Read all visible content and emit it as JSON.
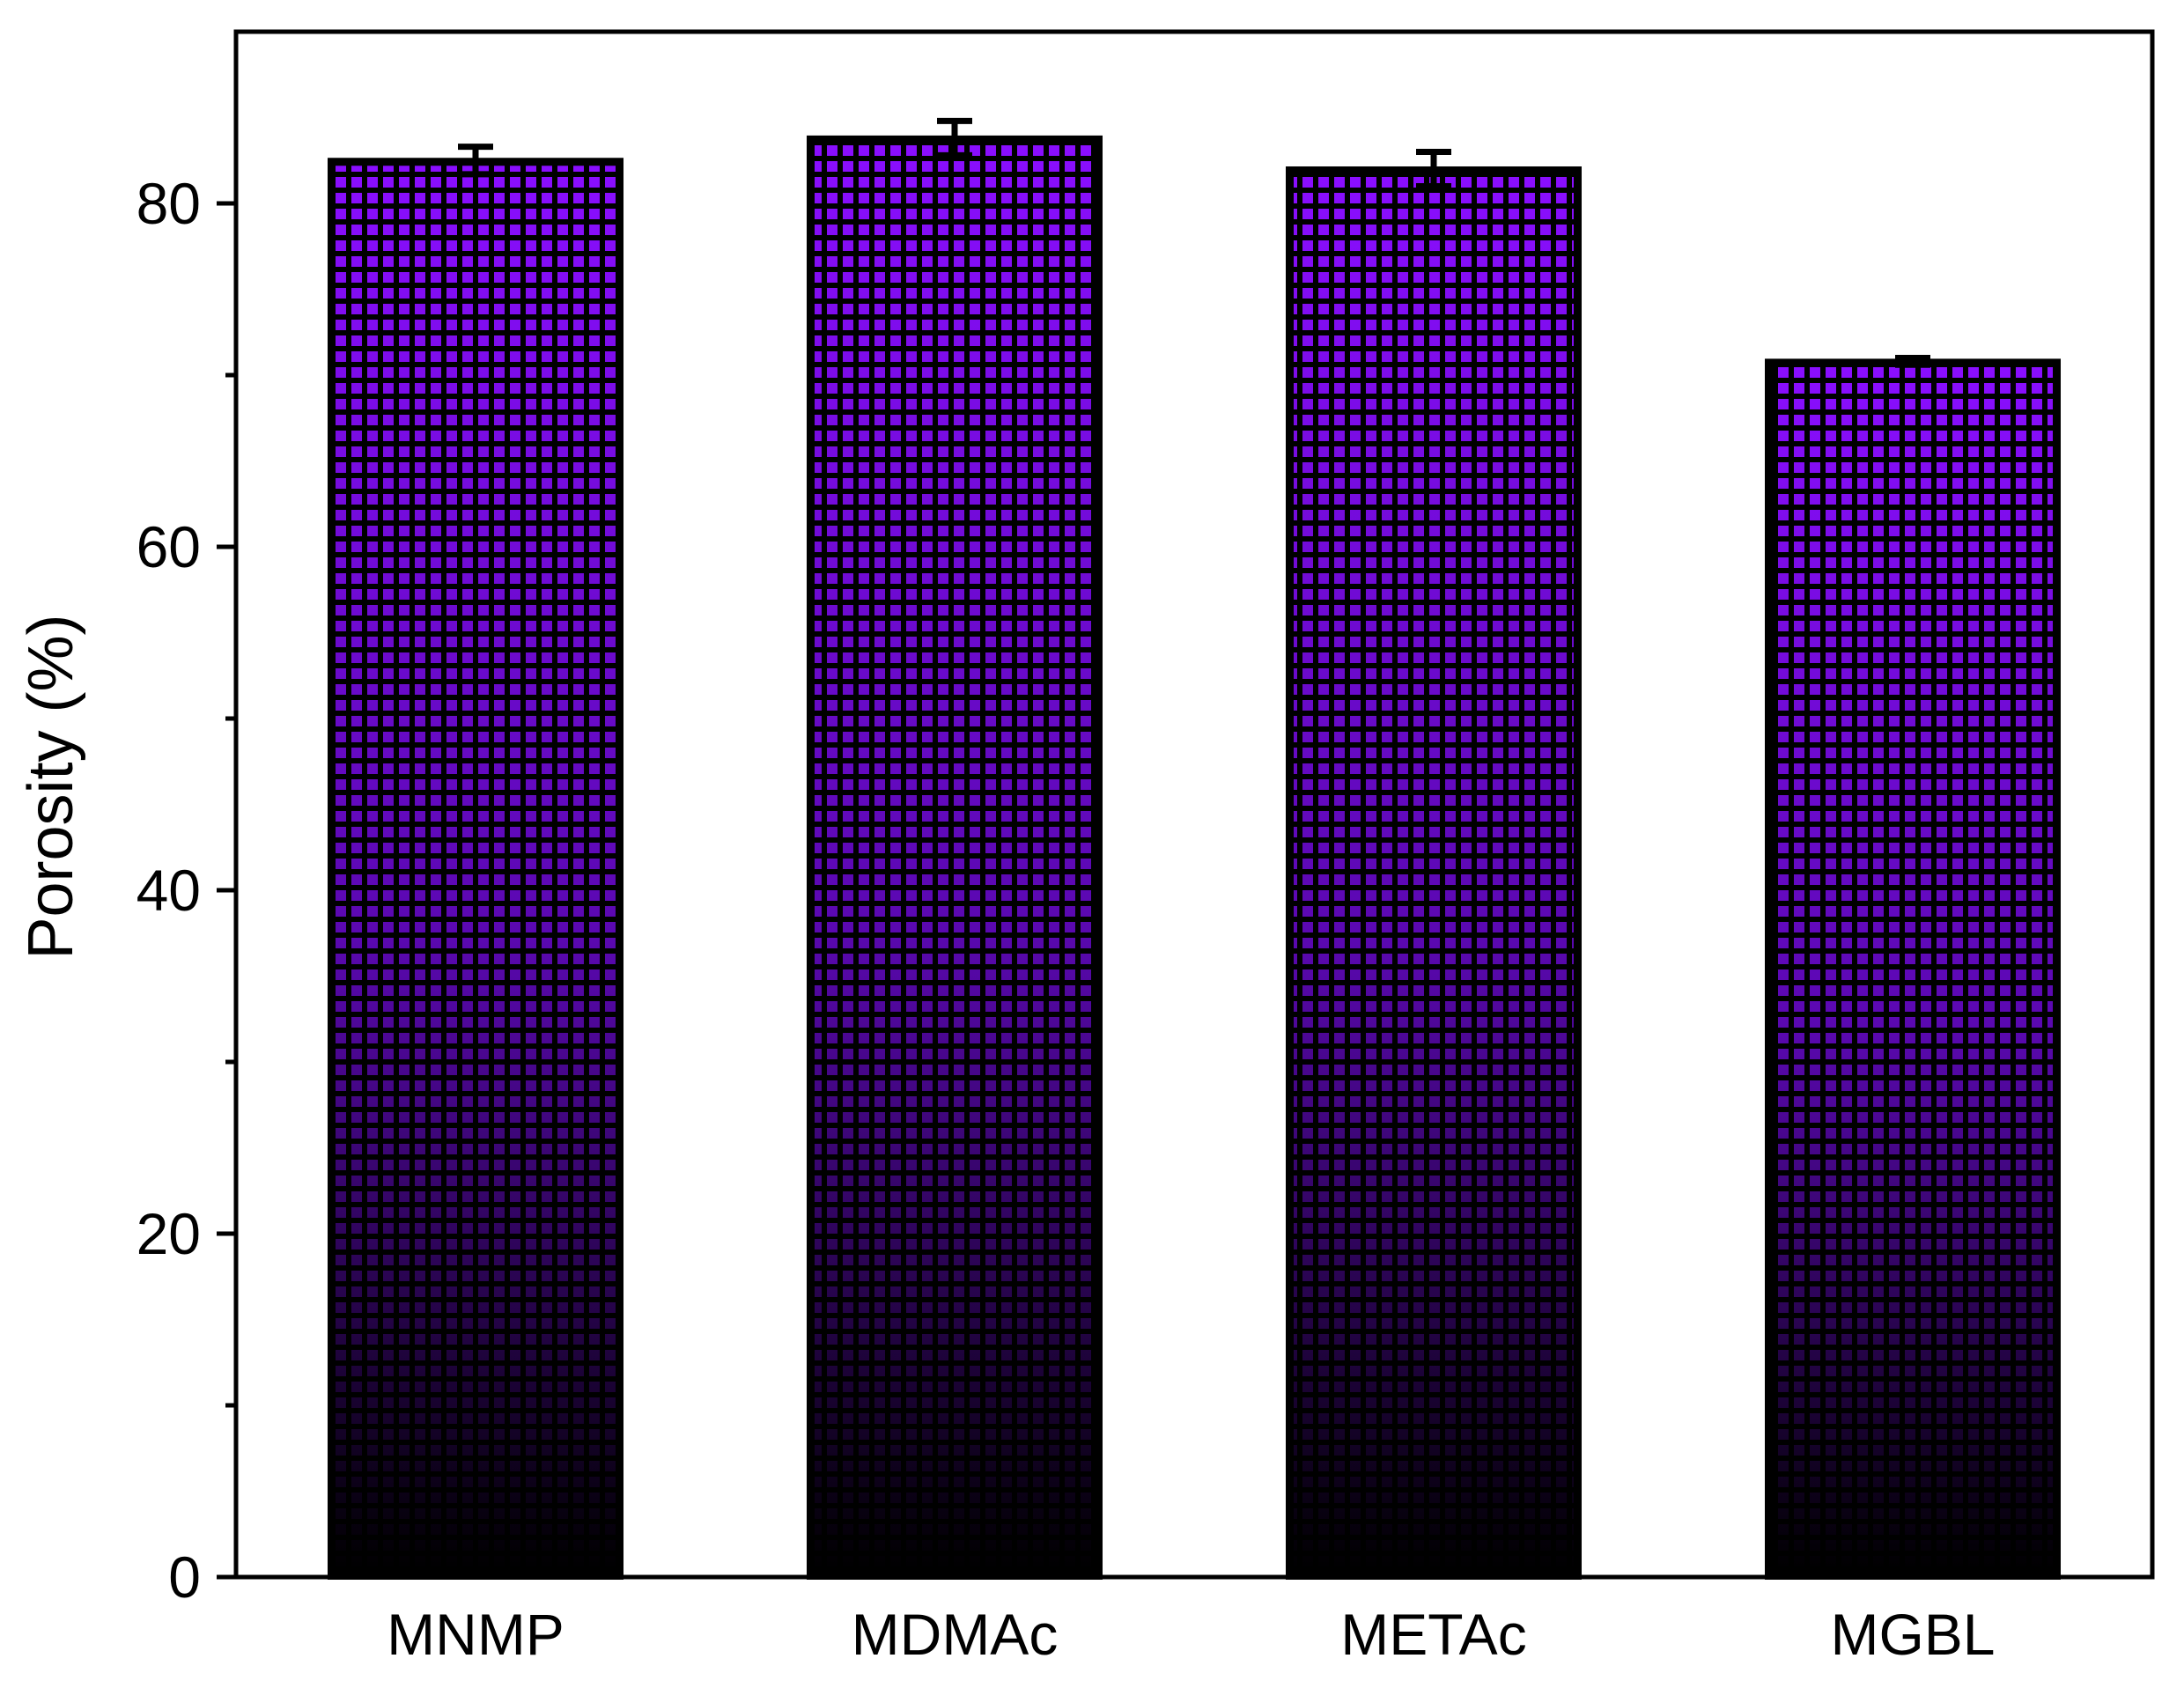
{
  "chart_data": {
    "type": "bar",
    "title": "",
    "xlabel": "",
    "ylabel": "Porosity (%)",
    "categories": [
      "MNMP",
      "MDMAc",
      "METAc",
      "MGBL"
    ],
    "values": [
      82.5,
      83.8,
      82.0,
      70.8
    ],
    "errors": [
      0.8,
      1.0,
      1.0,
      0.2
    ],
    "ylim": [
      0,
      90
    ],
    "yticks": [
      0,
      20,
      40,
      60,
      80
    ],
    "yticks_minor": [
      10,
      30,
      50,
      70
    ],
    "ytick_labels": [
      "0",
      "20",
      "40",
      "60",
      "80"
    ],
    "grid": false,
    "legend": "none",
    "colors": {
      "bar_top": "#8a0eff",
      "bar_bottom": "#000000",
      "outline": "#000000"
    }
  }
}
